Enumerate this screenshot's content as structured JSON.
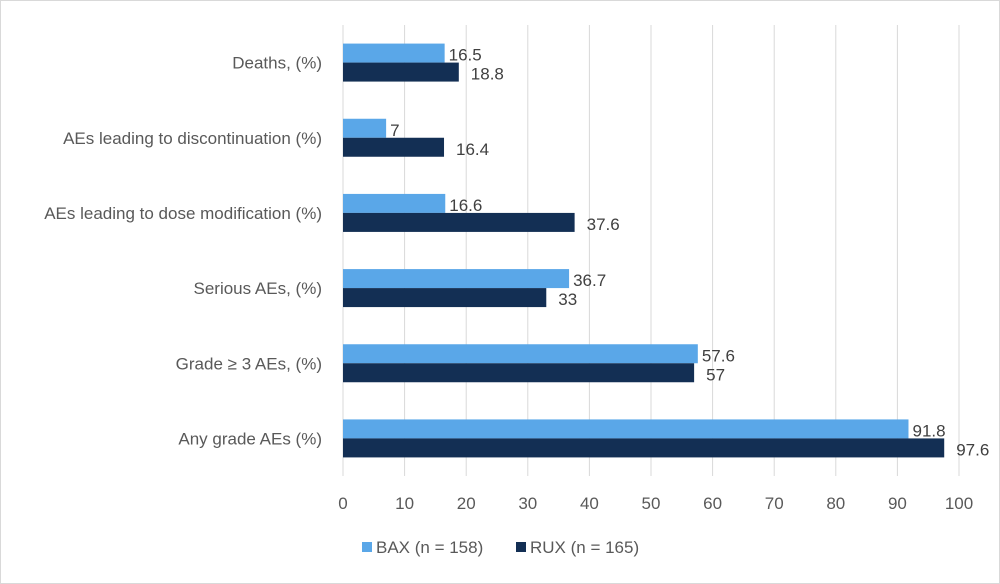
{
  "chart_data": {
    "type": "bar",
    "orientation": "horizontal",
    "title": "",
    "xlabel": "",
    "ylabel": "",
    "xlim": [
      0,
      100
    ],
    "xticks": [
      0,
      10,
      20,
      30,
      40,
      50,
      60,
      70,
      80,
      90,
      100
    ],
    "grid": true,
    "legend_position": "bottom",
    "categories": [
      "Deaths, (%)",
      "AEs leading to discontinuation (%)",
      "AEs leading to dose modification (%)",
      "Serious AEs, (%)",
      "Grade ≥ 3 AEs, (%)",
      "Any grade AEs (%)"
    ],
    "series": [
      {
        "name": "BAX (n = 158)",
        "color": "#5aa7e8",
        "values": [
          16.5,
          7,
          16.6,
          36.7,
          57.6,
          91.8
        ]
      },
      {
        "name": "RUX (n = 165)",
        "color": "#132f54",
        "values": [
          18.8,
          16.4,
          37.6,
          33,
          57,
          97.6
        ]
      }
    ]
  }
}
